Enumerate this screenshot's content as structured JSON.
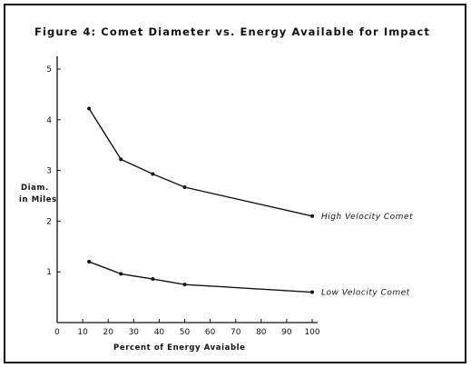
{
  "chart_data": {
    "type": "line",
    "title": "Figure 4:  Comet Diameter vs. Energy Available for Impact",
    "xlabel": "Percent of Energy Avaiable",
    "ylabel_line1": "Diam.",
    "ylabel_line2": "in Miles",
    "xlim": [
      0,
      100
    ],
    "ylim": [
      0,
      5
    ],
    "xticks": [
      "0",
      "10",
      "20",
      "30",
      "40",
      "50",
      "60",
      "70",
      "80",
      "90",
      "100"
    ],
    "yticks": [
      "1",
      "2",
      "3",
      "4",
      "5"
    ],
    "grid": false,
    "series": [
      {
        "name": "High Velocity Comet",
        "x": [
          12.5,
          25,
          37.5,
          50,
          100
        ],
        "values": [
          4.22,
          3.22,
          2.93,
          2.67,
          2.1
        ]
      },
      {
        "name": "Low Velocity Comet",
        "x": [
          12.5,
          25,
          37.5,
          50,
          100
        ],
        "values": [
          1.2,
          0.96,
          0.86,
          0.75,
          0.6
        ]
      }
    ]
  }
}
